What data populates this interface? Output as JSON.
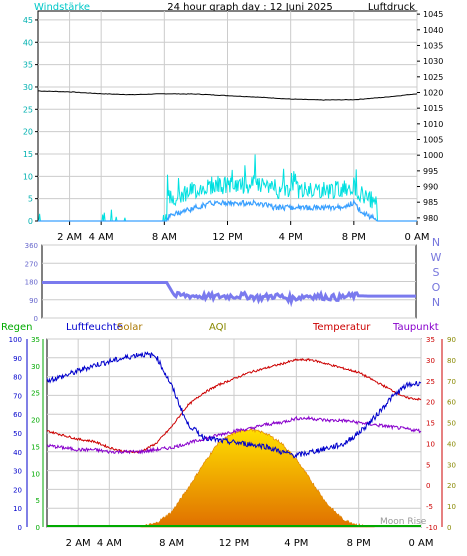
{
  "header": {
    "left_label": "Windstärke",
    "title": "24 hour graph day : 12 Juni 2025",
    "right_label": "Luftdruck"
  },
  "colors": {
    "wind": "#00d8d8",
    "gust": "#00e0e0",
    "pressure": "#000000",
    "direction": "#7a7aee",
    "humidity": "#0000cc",
    "temperature": "#cc0000",
    "dewpoint": "#8800cc",
    "rain": "#00aa00",
    "solar_top": "#ffe000",
    "solar_bottom": "#e07000",
    "aqi": "#888800",
    "border": "#000000"
  },
  "wind_panel": {
    "left_ticks": [
      "0",
      "5",
      "10",
      "15",
      "20",
      "25",
      "30",
      "35",
      "40",
      "45"
    ],
    "right_ticks": [
      "980",
      "985",
      "990",
      "995",
      "1000",
      "1005",
      "1010",
      "1015",
      "1020",
      "1025",
      "1030",
      "1035",
      "1040",
      "1045"
    ],
    "x_labels": [
      "2 AM",
      "4 AM",
      "8 AM",
      "12 PM",
      "4 PM",
      "8 PM",
      "0 AM"
    ]
  },
  "dir_panel": {
    "left_ticks": [
      "0",
      "90",
      "180",
      "270",
      "360"
    ],
    "compass": [
      "N",
      "W",
      "S",
      "O",
      "N"
    ]
  },
  "env_panel": {
    "legend": {
      "rain": "Regen",
      "humidity": "Luftfeuchte",
      "solar": "Solar",
      "aqi": "AQI",
      "temperature": "Temperatur",
      "dewpoint": "Taupunkt"
    },
    "humidity_ticks": [
      "0",
      "10",
      "20",
      "30",
      "40",
      "50",
      "60",
      "70",
      "80",
      "90",
      "100"
    ],
    "rain_ticks": [
      "0",
      "5",
      "10",
      "15",
      "20",
      "25",
      "30",
      "35"
    ],
    "temp_ticks": [
      "-10",
      "-5",
      "0",
      "5",
      "10",
      "15",
      "20",
      "25",
      "30",
      "35"
    ],
    "aqi_ticks": [
      "0",
      "10",
      "20",
      "30",
      "40",
      "50",
      "60",
      "70",
      "80",
      "90"
    ],
    "x_labels": [
      "2 AM",
      "4 AM",
      "8 AM",
      "12 PM",
      "4 PM",
      "8 PM",
      "0 AM"
    ],
    "watermark": "Moon Rise"
  },
  "chart_data": [
    {
      "type": "line",
      "title": "24 hour graph day : 12 Juni 2025",
      "x_unit": "hour of day",
      "xlim": [
        0,
        24
      ],
      "ylabel": "Windstärke",
      "ylim": [
        0,
        47
      ],
      "y2label": "Luftdruck",
      "y2lim": [
        979,
        1046
      ],
      "grid": true,
      "series": [
        {
          "name": "Windstärke",
          "axis": "left",
          "x": [
            0,
            2,
            4,
            6,
            8,
            8.3,
            9,
            10,
            11,
            12,
            13,
            14,
            15,
            16,
            17,
            18,
            19,
            20,
            20.5,
            21,
            22,
            23,
            24
          ],
          "y": [
            0,
            0,
            0,
            0,
            0,
            1,
            2,
            3,
            4,
            4,
            4,
            4,
            3,
            3,
            3,
            3,
            3,
            4,
            2,
            1,
            0,
            0,
            0
          ]
        },
        {
          "name": "Luftdruck",
          "axis": "right",
          "x": [
            0,
            2,
            4,
            6,
            8,
            10,
            12,
            14,
            16,
            18,
            20,
            22,
            24
          ],
          "y": [
            1020.5,
            1020.2,
            1019.6,
            1019.3,
            1019.6,
            1019.5,
            1019.0,
            1018.5,
            1017.9,
            1017.6,
            1017.7,
            1018.5,
            1019.6
          ]
        }
      ]
    },
    {
      "type": "scatter",
      "title": "",
      "x_unit": "hour of day",
      "xlim": [
        0,
        24
      ],
      "ylim": [
        0,
        360
      ],
      "series": [
        {
          "name": "",
          "x": [
            0,
            2,
            4,
            6,
            8,
            8.5,
            9,
            10,
            11,
            12,
            13,
            14,
            15,
            16,
            17,
            18,
            19,
            20,
            21,
            22,
            23,
            24
          ],
          "y": [
            175,
            175,
            175,
            175,
            175,
            110,
            112,
            108,
            105,
            108,
            110,
            100,
            110,
            95,
            110,
            105,
            100,
            110,
            108,
            108,
            108,
            108
          ]
        }
      ]
    },
    {
      "type": "line",
      "title": "",
      "x_unit": "hour of day",
      "xlim": [
        0,
        24
      ],
      "grid": true,
      "series": [
        {
          "name": "Luftfeuchte",
          "axis": "humidity",
          "ylim": [
            0,
            100
          ],
          "x": [
            0,
            1,
            2,
            3,
            4,
            5,
            6,
            7,
            8,
            9,
            10,
            11,
            12,
            13,
            14,
            15,
            16,
            17,
            18,
            19,
            20,
            21,
            22,
            23,
            24
          ],
          "y": [
            78,
            80,
            83,
            86,
            88,
            90,
            92,
            91,
            75,
            55,
            48,
            46,
            45,
            44,
            43,
            40,
            38,
            40,
            42,
            44,
            50,
            58,
            68,
            75,
            77
          ]
        },
        {
          "name": "Temperatur",
          "axis": "temperature",
          "ylim": [
            -10,
            35
          ],
          "x": [
            0,
            1,
            2,
            3,
            4,
            5,
            6,
            7,
            8,
            9,
            10,
            11,
            12,
            13,
            14,
            15,
            16,
            17,
            18,
            19,
            20,
            21,
            22,
            23,
            24
          ],
          "y": [
            13.0,
            12.0,
            11.0,
            10.5,
            9.0,
            8.0,
            8.0,
            10.0,
            14.0,
            19.0,
            22.0,
            24.0,
            25.5,
            27.0,
            28.0,
            29.0,
            30.0,
            30.0,
            29.0,
            28.0,
            27.0,
            25.0,
            23.0,
            21.0,
            20.5
          ]
        },
        {
          "name": "Taupunkt",
          "axis": "temperature",
          "ylim": [
            -10,
            35
          ],
          "x": [
            0,
            1,
            2,
            3,
            4,
            5,
            6,
            7,
            8,
            9,
            10,
            11,
            12,
            13,
            14,
            15,
            16,
            17,
            18,
            19,
            20,
            21,
            22,
            23,
            24
          ],
          "y": [
            9.5,
            9.0,
            8.5,
            8.5,
            8.0,
            8.0,
            8.0,
            8.5,
            9.0,
            10.0,
            11.0,
            12.0,
            13.0,
            13.5,
            14.5,
            15.0,
            16.0,
            16.0,
            15.5,
            15.5,
            15.0,
            14.5,
            14.0,
            13.5,
            13.0
          ]
        },
        {
          "name": "Solar",
          "axis": "humidity",
          "ylim": [
            0,
            100
          ],
          "x": [
            6,
            7,
            8,
            9,
            10,
            11,
            12,
            13,
            14,
            15,
            16,
            17,
            18,
            19,
            20,
            21
          ],
          "y": [
            0,
            2,
            8,
            20,
            33,
            45,
            50,
            52,
            50,
            45,
            36,
            24,
            12,
            4,
            1,
            0
          ]
        },
        {
          "name": "Regen",
          "axis": "rain",
          "ylim": [
            0,
            35
          ],
          "x": [
            0,
            24
          ],
          "y": [
            0,
            0
          ]
        }
      ]
    }
  ]
}
